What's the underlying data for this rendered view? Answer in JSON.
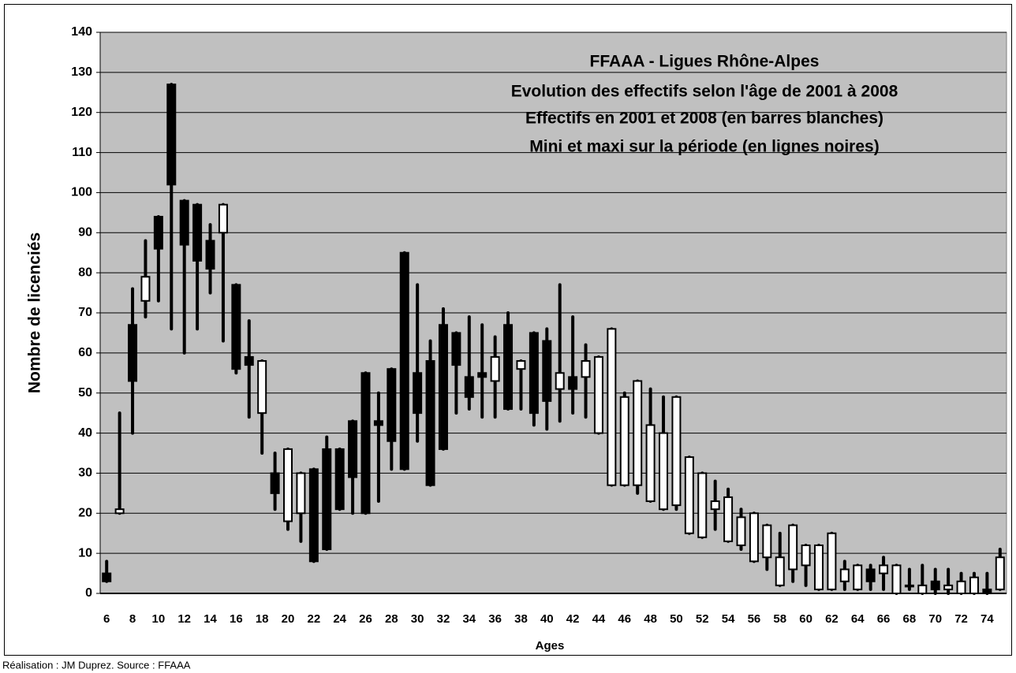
{
  "chart_data": {
    "type": "candlestick",
    "title": [
      "FFAAA - Ligues Rhône-Alpes",
      "Evolution des effectifs selon l'âge de 2001 à 2008",
      "Effectifs en 2001 et 2008 (en barres blanches)",
      "Mini et maxi sur la période (en lignes noires)"
    ],
    "x_label": "Ages",
    "y_label": "Nombre de licenciés",
    "footer": "Réalisation : JM Duprez. Source : FFAAA",
    "categories": [
      6,
      null,
      8,
      null,
      10,
      null,
      12,
      null,
      14,
      null,
      16,
      null,
      18,
      null,
      20,
      null,
      22,
      null,
      24,
      null,
      26,
      null,
      28,
      null,
      30,
      null,
      32,
      null,
      34,
      null,
      36,
      null,
      38,
      null,
      40,
      null,
      42,
      null,
      44,
      null,
      46,
      null,
      48,
      null,
      50,
      null,
      52,
      null,
      54,
      null,
      56,
      null,
      58,
      null,
      60,
      null,
      62,
      null,
      64,
      null,
      66,
      null,
      68,
      null,
      70,
      null,
      72,
      null,
      74,
      null
    ],
    "open": [
      5,
      20,
      67,
      73,
      94,
      127,
      98,
      97,
      88,
      90,
      77,
      59,
      45,
      30,
      18,
      20,
      31,
      36,
      36,
      43,
      55,
      43,
      56,
      85,
      55,
      58,
      67,
      65,
      54,
      55,
      53,
      67,
      56,
      65,
      63,
      51,
      54,
      54,
      40,
      27,
      27,
      27,
      23,
      21,
      22,
      15,
      14,
      21,
      13,
      12,
      8,
      9,
      2,
      6,
      7,
      1,
      1,
      3,
      1,
      6,
      5,
      0,
      2,
      0,
      3,
      1,
      0,
      0,
      1,
      1
    ],
    "high": [
      8,
      45,
      76,
      88,
      94,
      127,
      98,
      97,
      92,
      97,
      77,
      68,
      58,
      35,
      36,
      30,
      31,
      39,
      36,
      43,
      55,
      50,
      56,
      85,
      77,
      63,
      71,
      65,
      69,
      67,
      64,
      70,
      58,
      65,
      66,
      77,
      69,
      62,
      59,
      66,
      50,
      53,
      51,
      49,
      49,
      34,
      30,
      28,
      26,
      21,
      20,
      17,
      15,
      17,
      12,
      12,
      15,
      8,
      7,
      7,
      9,
      7,
      6,
      7,
      6,
      6,
      5,
      5,
      5,
      11
    ],
    "low": [
      3,
      20,
      40,
      69,
      73,
      66,
      60,
      66,
      75,
      63,
      55,
      44,
      35,
      21,
      16,
      13,
      8,
      11,
      21,
      20,
      20,
      23,
      31,
      31,
      38,
      27,
      36,
      45,
      46,
      44,
      44,
      46,
      46,
      42,
      41,
      43,
      45,
      44,
      40,
      27,
      27,
      25,
      23,
      21,
      21,
      15,
      14,
      16,
      13,
      11,
      8,
      6,
      2,
      3,
      2,
      1,
      1,
      1,
      1,
      1,
      1,
      0,
      1,
      0,
      0,
      0,
      0,
      0,
      0,
      1
    ],
    "close": [
      3,
      21,
      53,
      79,
      86,
      102,
      87,
      83,
      81,
      97,
      56,
      57,
      58,
      25,
      36,
      30,
      8,
      11,
      21,
      29,
      20,
      42,
      38,
      31,
      45,
      27,
      36,
      57,
      49,
      54,
      59,
      46,
      58,
      45,
      48,
      55,
      51,
      58,
      59,
      66,
      49,
      53,
      42,
      40,
      49,
      34,
      30,
      23,
      24,
      19,
      20,
      17,
      9,
      17,
      12,
      12,
      15,
      6,
      7,
      3,
      7,
      7,
      2,
      2,
      1,
      2,
      3,
      4,
      0,
      9
    ],
    "ylim": [
      0,
      140
    ],
    "yticks": [
      0,
      10,
      20,
      30,
      40,
      50,
      60,
      70,
      80,
      90,
      100,
      110,
      120,
      130,
      140
    ],
    "grid": true,
    "up_color": "#ffffff",
    "down_color": "#000000",
    "plot_color": "#c0c0c0"
  }
}
